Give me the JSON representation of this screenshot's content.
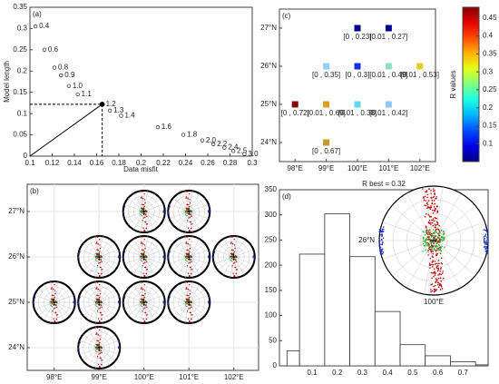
{
  "chart_data": [
    {
      "type": "scatter",
      "panel_label": "(a)",
      "xlabel": "Data misfit",
      "ylabel": "Model length",
      "x": [
        0.105,
        0.113,
        0.122,
        0.128,
        0.135,
        0.143,
        0.165,
        0.172,
        0.182,
        0.215,
        0.238,
        0.255,
        0.265,
        0.275,
        0.283,
        0.293
      ],
      "values": [
        0.305,
        0.25,
        0.208,
        0.19,
        0.165,
        0.145,
        0.122,
        0.107,
        0.095,
        0.068,
        0.05,
        0.037,
        0.028,
        0.02,
        0.012,
        0.005
      ],
      "point_labels": [
        "0.4",
        "0.6",
        "0.8",
        "0.9",
        "1.0",
        "1.1",
        "1.2",
        "1.3",
        "1.4",
        "1.6",
        "1.8",
        "2.0",
        "2.2",
        "2.4",
        "2.5",
        "3.0"
      ],
      "best_index": 6,
      "xlim": [
        0.1,
        0.3
      ],
      "xticks": [
        0.1,
        0.12,
        0.14,
        0.16,
        0.18,
        0.2,
        0.22,
        0.24,
        0.26,
        0.28,
        0.3
      ],
      "ylim": [
        0,
        0.35
      ],
      "yticks": [
        0,
        0.05,
        0.1,
        0.15,
        0.2,
        0.25,
        0.3,
        0.35
      ]
    },
    {
      "type": "scatter",
      "panel_label": "(c)",
      "colorbar_label": "R values",
      "x": [
        100,
        101,
        99,
        100,
        101,
        102,
        98,
        99,
        100,
        101,
        99
      ],
      "values": [
        27,
        27,
        26,
        26,
        26,
        26,
        25,
        25,
        25,
        25,
        24
      ],
      "point_labels": [
        "[0 , 0.23]",
        "[0.01 , 0.27]",
        "[0 , 0.35]",
        "[0 , 0.3]",
        "[0.01 , 0.49]",
        "[0.01 , 0.53]",
        "[0 , 0.72]",
        "[0.01 , 0.69]",
        "[0.01 , 0.38]",
        "[0.01 , 0.42]",
        "[0 , 0.67]"
      ],
      "colors": [
        "#00008f",
        "#00008f",
        "#8fd0ff",
        "#1830e0",
        "#90e0c8",
        "#e0d020",
        "#8f0000",
        "#d8a020",
        "#60d8f0",
        "#90c8f8",
        "#c89830"
      ],
      "xlim": [
        97.5,
        102.5
      ],
      "xticks": [
        {
          "value": 98,
          "label": "98°E"
        },
        {
          "value": 99,
          "label": "99°E"
        },
        {
          "value": 100,
          "label": "100°E"
        },
        {
          "value": 101,
          "label": "101°E"
        },
        {
          "value": 102,
          "label": "102°E"
        }
      ],
      "ylim": [
        23.5,
        27.5
      ],
      "yticks": [
        {
          "value": 24,
          "label": "24°N"
        },
        {
          "value": 25,
          "label": "25°N"
        },
        {
          "value": 26,
          "label": "26°N"
        },
        {
          "value": 27,
          "label": "27°N"
        }
      ],
      "colormap": "jet",
      "clim": [
        0.05,
        0.48
      ],
      "cticks": [
        0.1,
        0.15,
        0.2,
        0.25,
        0.3,
        0.35,
        0.4,
        0.45
      ]
    },
    {
      "type": "stereonet-map",
      "panel_label": "(b)",
      "x": [
        100,
        101,
        99,
        100,
        101,
        102,
        98,
        99,
        100,
        101,
        99
      ],
      "values": [
        27,
        27,
        26,
        26,
        26,
        26,
        25,
        25,
        25,
        25,
        24
      ],
      "xlim": [
        97.4,
        102.55
      ],
      "xticks": [
        {
          "value": 98,
          "label": "98°E"
        },
        {
          "value": 99,
          "label": "99°E"
        },
        {
          "value": 100,
          "label": "100°E"
        },
        {
          "value": 101,
          "label": "101°E"
        },
        {
          "value": 102,
          "label": "102°E"
        }
      ],
      "ylim": [
        23.5,
        27.6
      ],
      "yticks": [
        {
          "value": 24,
          "label": "24°N"
        },
        {
          "value": 25,
          "label": "25°N"
        },
        {
          "value": 26,
          "label": "26°N"
        },
        {
          "value": 27,
          "label": "27°N"
        }
      ]
    },
    {
      "type": "histogram",
      "panel_label": "(d)",
      "title": "R best = 0.32",
      "inset_lat": "26°N",
      "inset_lon": "100°E",
      "bins": [
        0,
        0.05,
        0.15,
        0.25,
        0.35,
        0.45,
        0.55,
        0.65,
        0.75,
        0.8
      ],
      "values": [
        30,
        222,
        302,
        217,
        108,
        42,
        20,
        8,
        2
      ],
      "xlim": [
        -0.03,
        0.8
      ],
      "xticks": [
        0.1,
        0.2,
        0.3,
        0.4,
        0.5,
        0.6,
        0.7
      ],
      "ylim": [
        0,
        350
      ],
      "yticks": [
        0,
        50,
        100,
        150,
        200,
        250,
        300,
        350
      ]
    }
  ]
}
